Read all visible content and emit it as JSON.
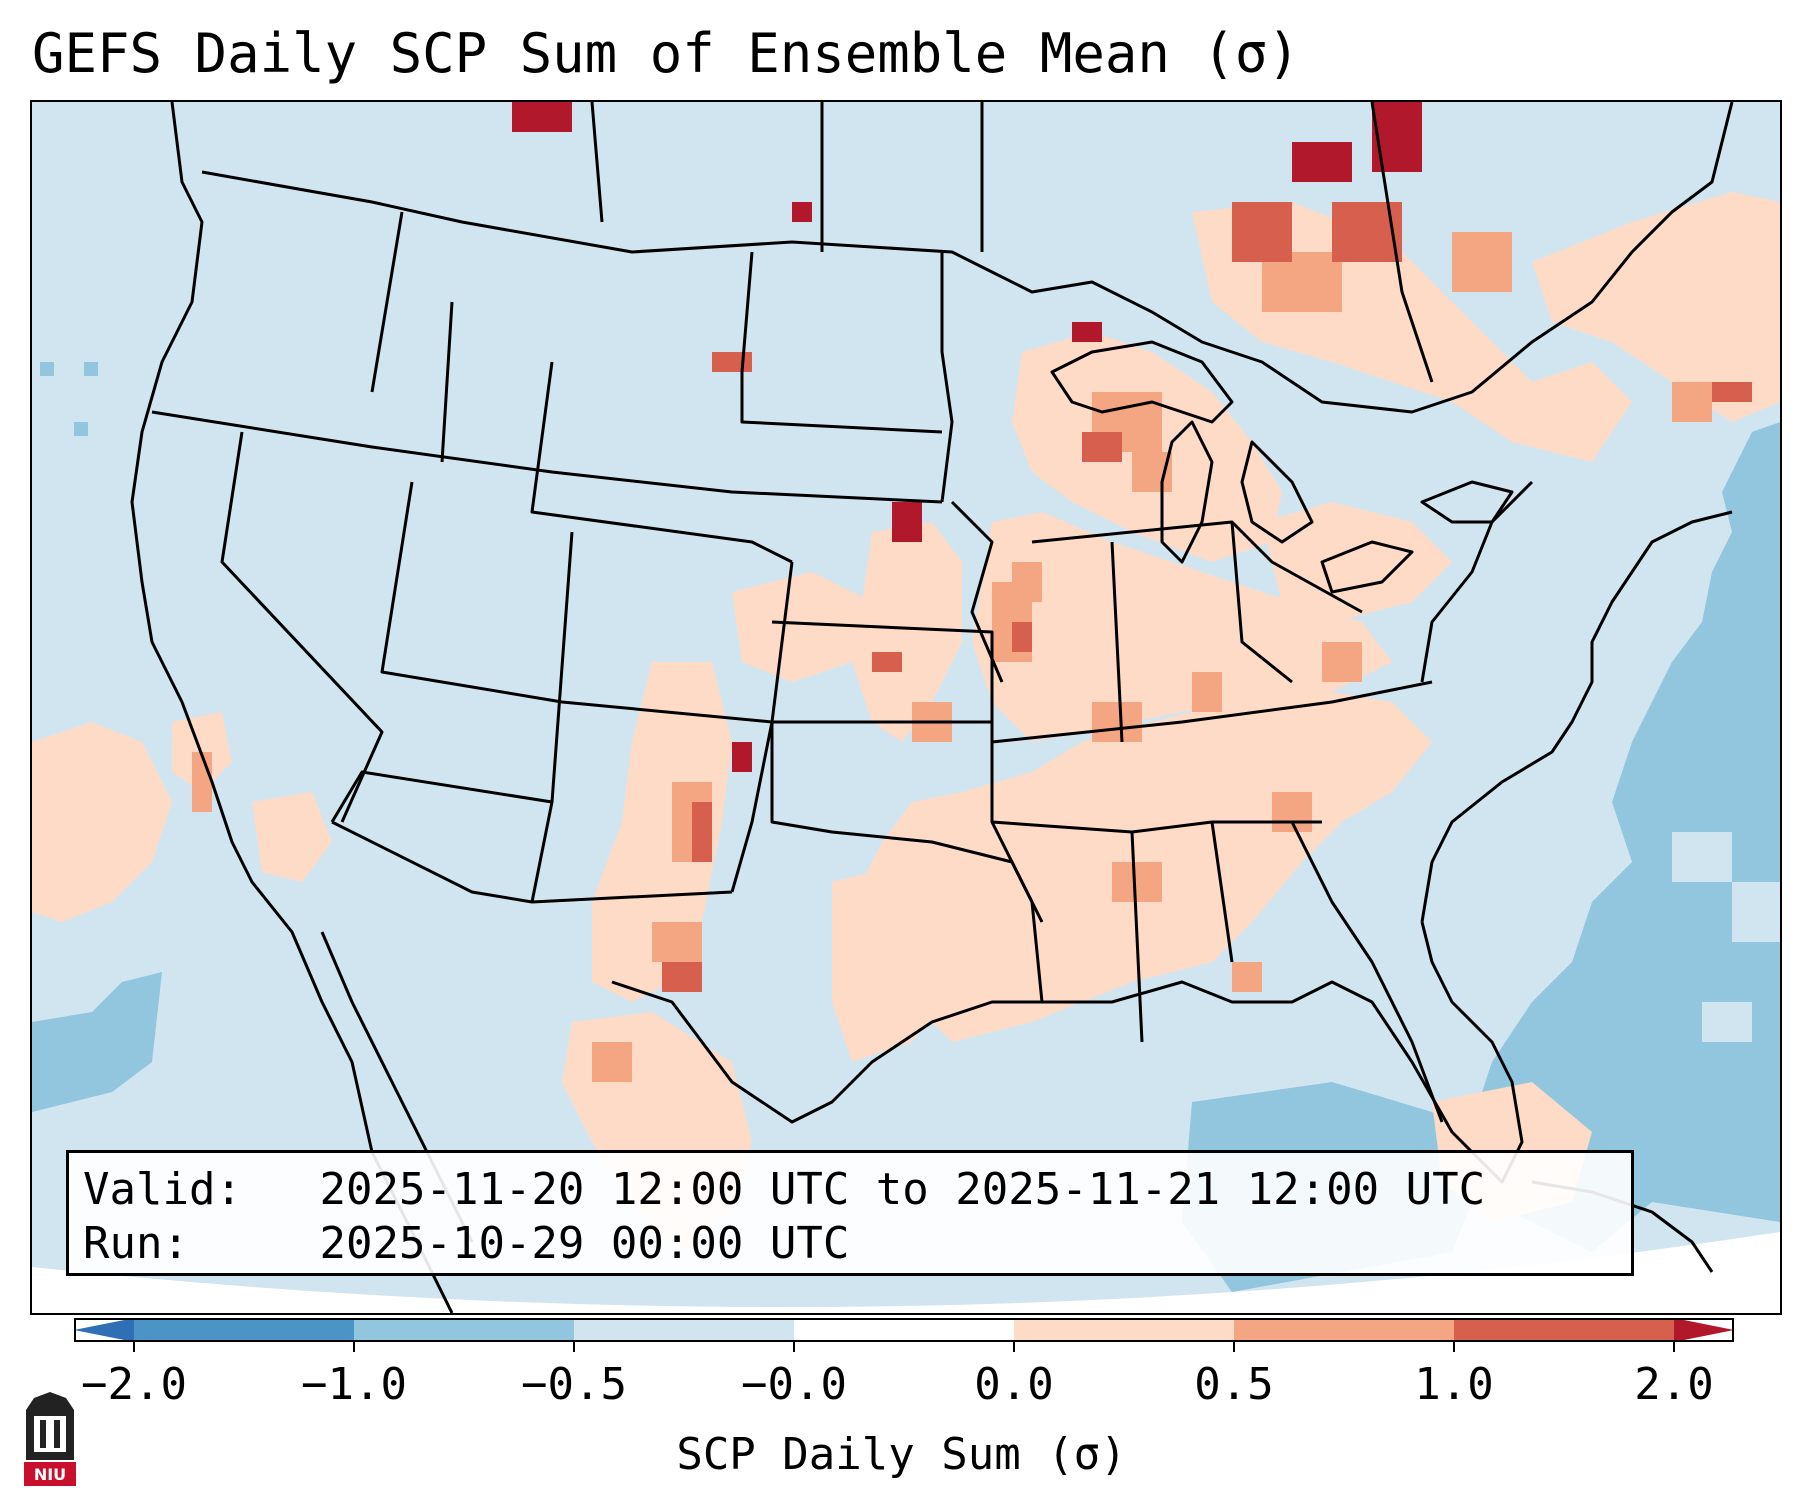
{
  "title": "GEFS Daily SCP Sum of Ensemble Mean (σ)",
  "info": {
    "valid_label": "Valid:",
    "valid_value": "2025-11-20 12:00 UTC to 2025-11-21 12:00 UTC",
    "run_label": "Run:",
    "run_value": "2025-10-29 00:00 UTC"
  },
  "colorbar": {
    "label": "SCP Daily Sum (σ)",
    "ticks": [
      "−2.0",
      "−1.0",
      "−0.5",
      "−0.0",
      "0.0",
      "0.5",
      "1.0",
      "2.0"
    ],
    "bins": [
      {
        "range": "< -2.0",
        "color": "#2f6fb3"
      },
      {
        "range": "-2.0 to -1.0",
        "color": "#4c93c6"
      },
      {
        "range": "-1.0 to -0.5",
        "color": "#92c5de"
      },
      {
        "range": "-0.5 to -0.0",
        "color": "#d1e5f0"
      },
      {
        "range": "-0.0 to 0.0",
        "color": "#ffffff"
      },
      {
        "range": "0.0 to 0.5",
        "color": "#fddbc7"
      },
      {
        "range": "0.5 to 1.0",
        "color": "#f4a582"
      },
      {
        "range": "1.0 to 2.0",
        "color": "#d6604d"
      },
      {
        "range": "> 2.0",
        "color": "#b2182b"
      }
    ]
  },
  "logo": {
    "text": "NIU"
  }
}
